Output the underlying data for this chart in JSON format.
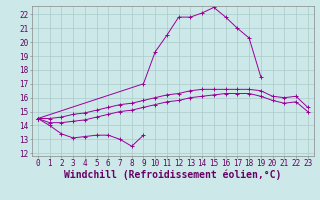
{
  "xlabel": "Windchill (Refroidissement éolien,°C)",
  "bg_color": "#cce8e8",
  "grid_color": "#aacccc",
  "line_color": "#990099",
  "ylim": [
    11.8,
    22.6
  ],
  "yticks": [
    12,
    13,
    14,
    15,
    16,
    17,
    18,
    19,
    20,
    21,
    22
  ],
  "xticks": [
    0,
    1,
    2,
    3,
    4,
    5,
    6,
    7,
    8,
    9,
    10,
    11,
    12,
    13,
    14,
    15,
    16,
    17,
    18,
    19,
    20,
    21,
    22,
    23
  ],
  "tick_fontsize": 5.5,
  "xlabel_fontsize": 7.0,
  "main_x": [
    0,
    9,
    10,
    11,
    12,
    13,
    14,
    15,
    16,
    17,
    18,
    19
  ],
  "main_y": [
    14.5,
    17.0,
    19.3,
    20.5,
    21.8,
    21.8,
    22.1,
    22.5,
    21.8,
    21.0,
    20.3,
    17.5
  ],
  "bot_x": [
    0,
    1,
    2,
    3,
    4,
    5,
    6,
    7,
    8,
    9
  ],
  "bot_y": [
    14.5,
    14.0,
    13.4,
    13.1,
    13.2,
    13.3,
    13.3,
    13.0,
    12.5,
    13.3
  ],
  "upper_x": [
    0,
    1,
    2,
    3,
    4,
    5,
    6,
    7,
    8,
    9,
    10,
    11,
    12,
    13,
    14,
    15,
    16,
    17,
    18,
    19,
    20,
    21,
    22,
    23
  ],
  "upper_y": [
    14.5,
    14.5,
    14.6,
    14.8,
    14.9,
    15.1,
    15.3,
    15.5,
    15.6,
    15.8,
    16.0,
    16.2,
    16.3,
    16.5,
    16.6,
    16.6,
    16.6,
    16.6,
    16.6,
    16.5,
    16.1,
    16.0,
    16.1,
    15.3
  ],
  "lower_x": [
    0,
    1,
    2,
    3,
    4,
    5,
    6,
    7,
    8,
    9,
    10,
    11,
    12,
    13,
    14,
    15,
    16,
    17,
    18,
    19,
    20,
    21,
    22,
    23
  ],
  "lower_y": [
    14.5,
    14.2,
    14.2,
    14.3,
    14.4,
    14.6,
    14.8,
    15.0,
    15.1,
    15.3,
    15.5,
    15.7,
    15.8,
    16.0,
    16.1,
    16.2,
    16.3,
    16.3,
    16.3,
    16.1,
    15.8,
    15.6,
    15.7,
    15.0
  ]
}
